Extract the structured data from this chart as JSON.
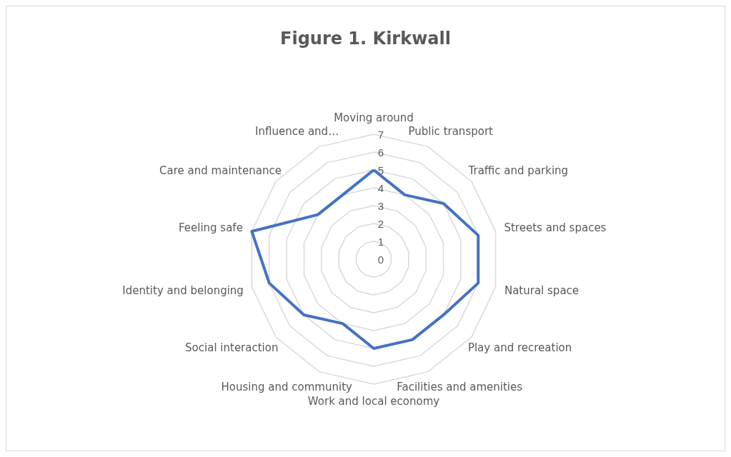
{
  "chart_data": {
    "type": "radar",
    "title": "Figure 1. Kirkwall",
    "categories": [
      "Moving around",
      "Public transport",
      "Traffic and parking",
      "Streets and spaces",
      "Natural space",
      "Play and recreation",
      "Facilities and amenities",
      "Work and local economy",
      "Housing and community",
      "Social interaction",
      "Identity and belonging",
      "Feeling safe",
      "Care and maintenance",
      "Influence and…"
    ],
    "series": [
      {
        "color": "#4472c4",
        "values": [
          5,
          4,
          5,
          6,
          6,
          5,
          5,
          5,
          4,
          5,
          6,
          7,
          4,
          4
        ]
      }
    ],
    "ylim": [
      0,
      7
    ],
    "yticks": [
      0,
      1,
      2,
      3,
      4,
      5,
      6,
      7
    ],
    "grid": true,
    "marker": "none"
  }
}
